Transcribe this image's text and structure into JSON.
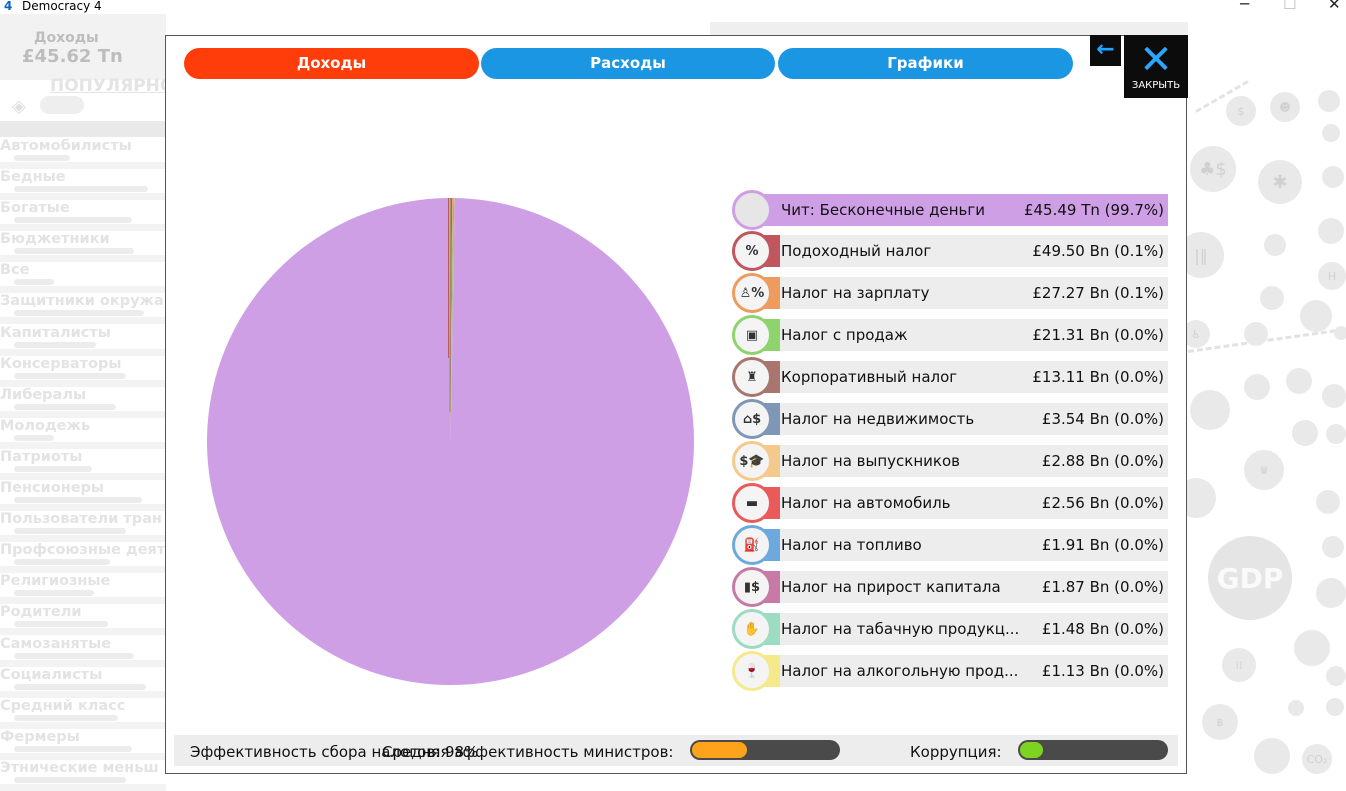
{
  "window": {
    "app_icon": "4",
    "title": "Democracy 4",
    "minimize": "─",
    "maximize": "☐",
    "close": "✕"
  },
  "background": {
    "treasury_label": "Доходы",
    "treasury_value": "£45.62 Tn",
    "popular_label": "ПОПУЛЯРНО",
    "groups": [
      "Автомобилисты",
      "Бедные",
      "Богатые",
      "Бюджетники",
      "Все",
      "Защитники окружа",
      "Капиталисты",
      "Консерваторы",
      "Либералы",
      "Молодежь",
      "Патриоты",
      "Пенсионеры",
      "Пользователи тран",
      "Профсоюзные деят",
      "Религиозные",
      "Родители",
      "Самозанятые",
      "Социалисты",
      "Средний класс",
      "Фермеры",
      "Этнические меньш"
    ],
    "top_icons": [
      "❦",
      "≡",
      "?"
    ],
    "gdp_label": "GDP"
  },
  "tabs": {
    "income": "Доходы",
    "expenses": "Расходы",
    "graphs": "Графики"
  },
  "buttons": {
    "back_icon": "←",
    "close_icon": "✕",
    "close_label": "ЗАКРЫТЬ"
  },
  "chart_data": {
    "type": "pie",
    "title": "",
    "slices": [
      {
        "name": "Чит: Бесконечные деньги",
        "value": 45490,
        "display": "£45.49 Tn (99.7%)",
        "color": "#cf9fe6",
        "icon": "blank-circle-icon",
        "glyph": ""
      },
      {
        "name": "Подоходный налог",
        "value": 49.5,
        "display": "£49.50 Bn (0.1%)",
        "color": "#c0575e",
        "icon": "percent-icon",
        "glyph": "%"
      },
      {
        "name": "Налог на зарплату",
        "value": 27.27,
        "display": "£27.27 Bn (0.1%)",
        "color": "#ee9b5e",
        "icon": "person-percent-icon",
        "glyph": "♙%"
      },
      {
        "name": "Налог с продаж",
        "value": 21.31,
        "display": "£21.31 Bn (0.0%)",
        "color": "#8ed36b",
        "icon": "shopping-bag-icon",
        "glyph": "▣"
      },
      {
        "name": "Корпоративный налог",
        "value": 13.11,
        "display": "£13.11 Bn (0.0%)",
        "color": "#a8766e",
        "icon": "businessman-icon",
        "glyph": "♜"
      },
      {
        "name": "Налог на недвижимость",
        "value": 3.54,
        "display": "£3.54 Bn (0.0%)",
        "color": "#7f97b6",
        "icon": "house-dollar-icon",
        "glyph": "⌂$"
      },
      {
        "name": "Налог на выпускников",
        "value": 2.88,
        "display": "£2.88 Bn (0.0%)",
        "color": "#f4c98c",
        "icon": "graduation-dollar-icon",
        "glyph": "$🎓"
      },
      {
        "name": "Налог на автомобиль",
        "value": 2.56,
        "display": "£2.56 Bn (0.0%)",
        "color": "#ea5a5a",
        "icon": "car-icon",
        "glyph": "▬"
      },
      {
        "name": "Налог на топливо",
        "value": 1.91,
        "display": "£1.91 Bn (0.0%)",
        "color": "#6ea9dd",
        "icon": "fuel-nozzle-icon",
        "glyph": "⛽"
      },
      {
        "name": "Налог на прирост капитала",
        "value": 1.87,
        "display": "£1.87 Bn (0.0%)",
        "color": "#c77aa6",
        "icon": "capital-gains-icon",
        "glyph": "▮$"
      },
      {
        "name": "Налог на табачную продукц...",
        "value": 1.48,
        "display": "£1.48 Bn (0.0%)",
        "color": "#9bdcc2",
        "icon": "cigarette-hand-icon",
        "glyph": "✋"
      },
      {
        "name": "Налог на алкогольную прод...",
        "value": 1.13,
        "display": "£1.13 Bn (0.0%)",
        "color": "#f4ea8c",
        "icon": "bottle-glass-icon",
        "glyph": "🍷"
      }
    ]
  },
  "footer": {
    "tax_efficiency_label": "Эффективность сбора налогов: 98%",
    "minister_label": "Средняя эффективность министров:",
    "minister_value": 0.38,
    "minister_color": "#ffa31a",
    "corruption_label": "Коррупция:",
    "corruption_value": 0.16,
    "corruption_color": "#7ed321"
  }
}
